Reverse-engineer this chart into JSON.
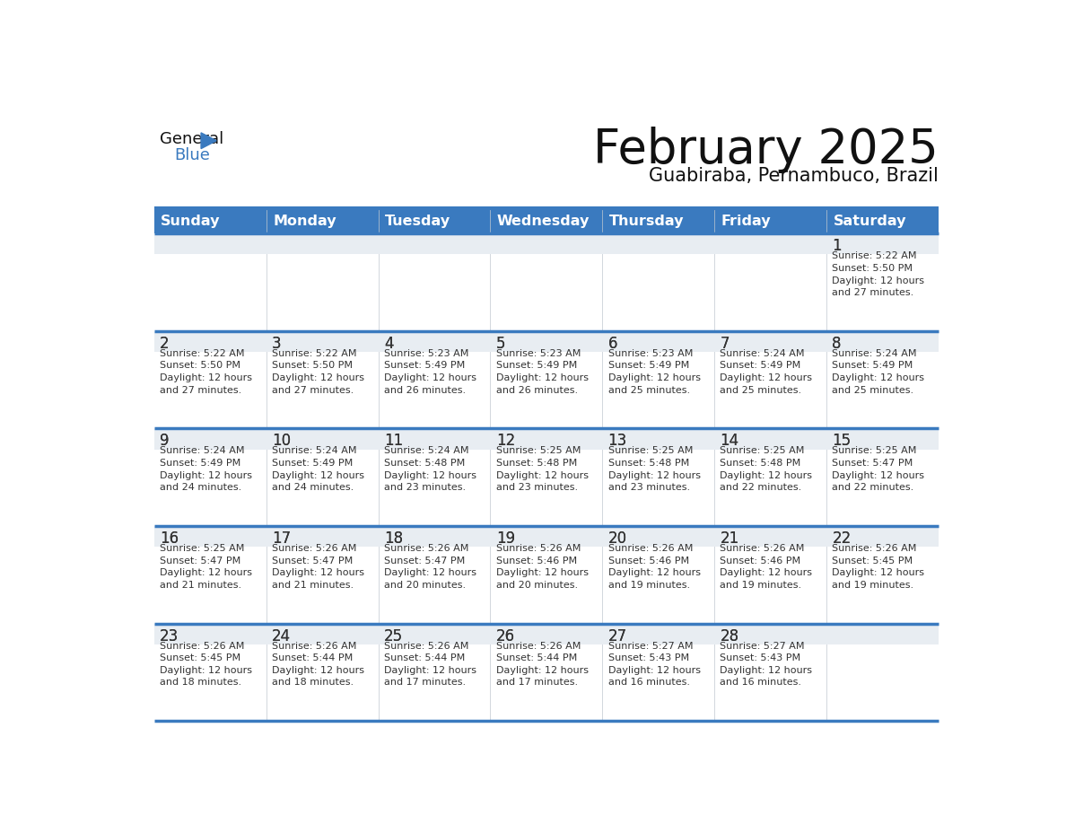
{
  "title": "February 2025",
  "subtitle": "Guabiraba, Pernambuco, Brazil",
  "days_of_week": [
    "Sunday",
    "Monday",
    "Tuesday",
    "Wednesday",
    "Thursday",
    "Friday",
    "Saturday"
  ],
  "header_bg": "#3a7abf",
  "header_text": "#ffffff",
  "cell_bg_gray": "#e8edf2",
  "cell_bg_white": "#ffffff",
  "day_number_color": "#333333",
  "info_text_color": "#333333",
  "border_color": "#3a7abf",
  "logo_triangle_color": "#3a7abf",
  "calendar_data": [
    [
      null,
      null,
      null,
      null,
      null,
      null,
      {
        "day": "1",
        "sunrise": "5:22 AM",
        "sunset": "5:50 PM",
        "daylight": "12 hours\nand 27 minutes."
      }
    ],
    [
      {
        "day": "2",
        "sunrise": "5:22 AM",
        "sunset": "5:50 PM",
        "daylight": "12 hours\nand 27 minutes."
      },
      {
        "day": "3",
        "sunrise": "5:22 AM",
        "sunset": "5:50 PM",
        "daylight": "12 hours\nand 27 minutes."
      },
      {
        "day": "4",
        "sunrise": "5:23 AM",
        "sunset": "5:49 PM",
        "daylight": "12 hours\nand 26 minutes."
      },
      {
        "day": "5",
        "sunrise": "5:23 AM",
        "sunset": "5:49 PM",
        "daylight": "12 hours\nand 26 minutes."
      },
      {
        "day": "6",
        "sunrise": "5:23 AM",
        "sunset": "5:49 PM",
        "daylight": "12 hours\nand 25 minutes."
      },
      {
        "day": "7",
        "sunrise": "5:24 AM",
        "sunset": "5:49 PM",
        "daylight": "12 hours\nand 25 minutes."
      },
      {
        "day": "8",
        "sunrise": "5:24 AM",
        "sunset": "5:49 PM",
        "daylight": "12 hours\nand 25 minutes."
      }
    ],
    [
      {
        "day": "9",
        "sunrise": "5:24 AM",
        "sunset": "5:49 PM",
        "daylight": "12 hours\nand 24 minutes."
      },
      {
        "day": "10",
        "sunrise": "5:24 AM",
        "sunset": "5:49 PM",
        "daylight": "12 hours\nand 24 minutes."
      },
      {
        "day": "11",
        "sunrise": "5:24 AM",
        "sunset": "5:48 PM",
        "daylight": "12 hours\nand 23 minutes."
      },
      {
        "day": "12",
        "sunrise": "5:25 AM",
        "sunset": "5:48 PM",
        "daylight": "12 hours\nand 23 minutes."
      },
      {
        "day": "13",
        "sunrise": "5:25 AM",
        "sunset": "5:48 PM",
        "daylight": "12 hours\nand 23 minutes."
      },
      {
        "day": "14",
        "sunrise": "5:25 AM",
        "sunset": "5:48 PM",
        "daylight": "12 hours\nand 22 minutes."
      },
      {
        "day": "15",
        "sunrise": "5:25 AM",
        "sunset": "5:47 PM",
        "daylight": "12 hours\nand 22 minutes."
      }
    ],
    [
      {
        "day": "16",
        "sunrise": "5:25 AM",
        "sunset": "5:47 PM",
        "daylight": "12 hours\nand 21 minutes."
      },
      {
        "day": "17",
        "sunrise": "5:26 AM",
        "sunset": "5:47 PM",
        "daylight": "12 hours\nand 21 minutes."
      },
      {
        "day": "18",
        "sunrise": "5:26 AM",
        "sunset": "5:47 PM",
        "daylight": "12 hours\nand 20 minutes."
      },
      {
        "day": "19",
        "sunrise": "5:26 AM",
        "sunset": "5:46 PM",
        "daylight": "12 hours\nand 20 minutes."
      },
      {
        "day": "20",
        "sunrise": "5:26 AM",
        "sunset": "5:46 PM",
        "daylight": "12 hours\nand 19 minutes."
      },
      {
        "day": "21",
        "sunrise": "5:26 AM",
        "sunset": "5:46 PM",
        "daylight": "12 hours\nand 19 minutes."
      },
      {
        "day": "22",
        "sunrise": "5:26 AM",
        "sunset": "5:45 PM",
        "daylight": "12 hours\nand 19 minutes."
      }
    ],
    [
      {
        "day": "23",
        "sunrise": "5:26 AM",
        "sunset": "5:45 PM",
        "daylight": "12 hours\nand 18 minutes."
      },
      {
        "day": "24",
        "sunrise": "5:26 AM",
        "sunset": "5:44 PM",
        "daylight": "12 hours\nand 18 minutes."
      },
      {
        "day": "25",
        "sunrise": "5:26 AM",
        "sunset": "5:44 PM",
        "daylight": "12 hours\nand 17 minutes."
      },
      {
        "day": "26",
        "sunrise": "5:26 AM",
        "sunset": "5:44 PM",
        "daylight": "12 hours\nand 17 minutes."
      },
      {
        "day": "27",
        "sunrise": "5:27 AM",
        "sunset": "5:43 PM",
        "daylight": "12 hours\nand 16 minutes."
      },
      {
        "day": "28",
        "sunrise": "5:27 AM",
        "sunset": "5:43 PM",
        "daylight": "12 hours\nand 16 minutes."
      },
      null
    ]
  ]
}
